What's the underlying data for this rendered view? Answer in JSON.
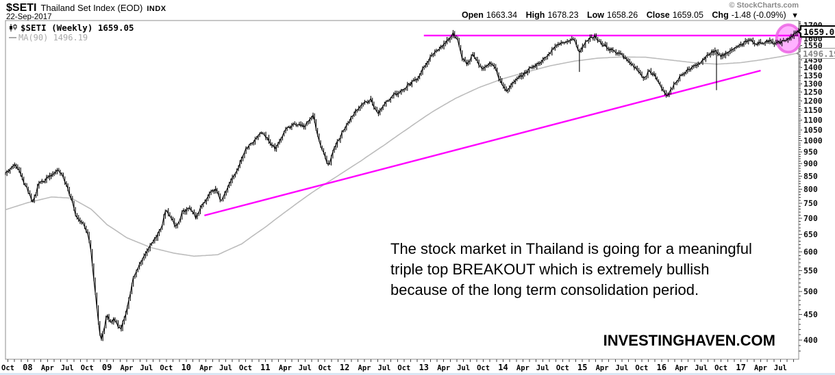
{
  "header": {
    "symbol": "$SETI",
    "name": "Thailand Set Index (EOD)",
    "exchange": "INDX",
    "date": "22-Sep-2017",
    "copyright": "© StockCharts.com",
    "quote": {
      "open_label": "Open",
      "open": "1663.34",
      "high_label": "High",
      "high": "1678.23",
      "low_label": "Low",
      "low": "1658.26",
      "close_label": "Close",
      "close": "1659.05",
      "chg_label": "Chg",
      "chg": "-1.48 (-0.09%)",
      "chg_arrow": "▼"
    }
  },
  "legend": {
    "series": "$SETI (Weekly) 1659.05",
    "ma": "MA(90) 1496.19"
  },
  "price_labels": {
    "last": "1659.05",
    "ma": "1496.19"
  },
  "annotation": {
    "lines": [
      "The stock market in Thailand is going for a meaningful",
      "triple top BREAKOUT which is extremely bullish",
      "because of the long term consolidation period."
    ]
  },
  "watermark": "INVESTINGHAVEN.COM",
  "colors": {
    "price": "#000000",
    "ma_line": "#bcbcbc",
    "trendline": "#ff00ff",
    "ellipse_fill": "rgba(255,0,255,0.30)",
    "ellipse_stroke": "rgba(236,100,228,0.85)",
    "axis": "#8c8c8c",
    "tick_text": "#111111"
  },
  "chart_data": {
    "type": "candlestick",
    "timeframe": "weekly",
    "x_range_years": [
      2007.72,
      2017.73
    ],
    "y_scale": "log",
    "y_range": [
      366,
      1738
    ],
    "y_ticks": [
      400,
      450,
      500,
      550,
      600,
      650,
      700,
      750,
      800,
      850,
      900,
      950,
      1000,
      1050,
      1100,
      1150,
      1200,
      1250,
      1300,
      1350,
      1400,
      1450,
      1500,
      1550,
      1600,
      1650,
      1700
    ],
    "x_tick_labels": [
      "Oct",
      "08",
      "Apr",
      "Jul",
      "Oct",
      "09",
      "Apr",
      "Jul",
      "Oct",
      "10",
      "Apr",
      "Jul",
      "Oct",
      "11",
      "Apr",
      "Jul",
      "Oct",
      "12",
      "Apr",
      "Jul",
      "Oct",
      "13",
      "Apr",
      "Jul",
      "Oct",
      "14",
      "Apr",
      "Jul",
      "Oct",
      "15",
      "Apr",
      "Jul",
      "Oct",
      "16",
      "Apr",
      "Jul",
      "Oct",
      "17",
      "Apr",
      "Jul"
    ],
    "x_tick_start_year": 2007.75,
    "x_tick_step_years": 0.25,
    "last_close": 1659.05,
    "last_high": 1678.23,
    "last_low": 1658.26,
    "ma_period": 90,
    "ma_last": 1496.19,
    "close_anchors": [
      [
        2007.72,
        858
      ],
      [
        2007.8,
        880
      ],
      [
        2007.86,
        897
      ],
      [
        2007.92,
        845
      ],
      [
        2008.0,
        800
      ],
      [
        2008.06,
        748
      ],
      [
        2008.14,
        820
      ],
      [
        2008.22,
        835
      ],
      [
        2008.3,
        855
      ],
      [
        2008.38,
        878
      ],
      [
        2008.46,
        840
      ],
      [
        2008.54,
        772
      ],
      [
        2008.62,
        700
      ],
      [
        2008.7,
        688
      ],
      [
        2008.76,
        650
      ],
      [
        2008.8,
        596
      ],
      [
        2008.84,
        520
      ],
      [
        2008.88,
        452
      ],
      [
        2008.92,
        398
      ],
      [
        2008.96,
        420
      ],
      [
        2009.0,
        450
      ],
      [
        2009.05,
        435
      ],
      [
        2009.1,
        440
      ],
      [
        2009.17,
        418
      ],
      [
        2009.25,
        460
      ],
      [
        2009.33,
        530
      ],
      [
        2009.42,
        570
      ],
      [
        2009.5,
        595
      ],
      [
        2009.58,
        630
      ],
      [
        2009.67,
        660
      ],
      [
        2009.75,
        728
      ],
      [
        2009.83,
        690
      ],
      [
        2009.88,
        672
      ],
      [
        2009.95,
        720
      ],
      [
        2010.05,
        735
      ],
      [
        2010.12,
        700
      ],
      [
        2010.2,
        740
      ],
      [
        2010.3,
        788
      ],
      [
        2010.38,
        800
      ],
      [
        2010.44,
        755
      ],
      [
        2010.55,
        820
      ],
      [
        2010.65,
        880
      ],
      [
        2010.75,
        960
      ],
      [
        2010.85,
        995
      ],
      [
        2010.95,
        1035
      ],
      [
        2011.05,
        1000
      ],
      [
        2011.12,
        965
      ],
      [
        2011.25,
        1050
      ],
      [
        2011.38,
        1080
      ],
      [
        2011.5,
        1070
      ],
      [
        2011.6,
        1125
      ],
      [
        2011.68,
        1000
      ],
      [
        2011.76,
        920
      ],
      [
        2011.8,
        890
      ],
      [
        2011.88,
        975
      ],
      [
        2011.96,
        1030
      ],
      [
        2012.05,
        1090
      ],
      [
        2012.15,
        1150
      ],
      [
        2012.25,
        1190
      ],
      [
        2012.33,
        1205
      ],
      [
        2012.42,
        1135
      ],
      [
        2012.5,
        1180
      ],
      [
        2012.6,
        1230
      ],
      [
        2012.7,
        1250
      ],
      [
        2012.8,
        1290
      ],
      [
        2012.9,
        1320
      ],
      [
        2013.0,
        1400
      ],
      [
        2013.1,
        1480
      ],
      [
        2013.2,
        1530
      ],
      [
        2013.3,
        1590
      ],
      [
        2013.37,
        1635
      ],
      [
        2013.42,
        1590
      ],
      [
        2013.48,
        1465
      ],
      [
        2013.54,
        1420
      ],
      [
        2013.62,
        1480
      ],
      [
        2013.68,
        1435
      ],
      [
        2013.74,
        1380
      ],
      [
        2013.82,
        1430
      ],
      [
        2013.9,
        1395
      ],
      [
        2013.97,
        1305
      ],
      [
        2014.04,
        1250
      ],
      [
        2014.12,
        1300
      ],
      [
        2014.22,
        1345
      ],
      [
        2014.32,
        1385
      ],
      [
        2014.42,
        1415
      ],
      [
        2014.52,
        1460
      ],
      [
        2014.62,
        1520
      ],
      [
        2014.72,
        1560
      ],
      [
        2014.82,
        1585
      ],
      [
        2014.9,
        1600
      ],
      [
        2014.96,
        1500
      ],
      [
        2015.02,
        1560
      ],
      [
        2015.1,
        1600
      ],
      [
        2015.16,
        1615
      ],
      [
        2015.24,
        1560
      ],
      [
        2015.32,
        1540
      ],
      [
        2015.4,
        1500
      ],
      [
        2015.5,
        1480
      ],
      [
        2015.58,
        1440
      ],
      [
        2015.66,
        1400
      ],
      [
        2015.72,
        1365
      ],
      [
        2015.78,
        1330
      ],
      [
        2015.84,
        1380
      ],
      [
        2015.9,
        1360
      ],
      [
        2015.96,
        1300
      ],
      [
        2016.02,
        1260
      ],
      [
        2016.08,
        1228
      ],
      [
        2016.16,
        1300
      ],
      [
        2016.24,
        1350
      ],
      [
        2016.32,
        1385
      ],
      [
        2016.4,
        1400
      ],
      [
        2016.48,
        1430
      ],
      [
        2016.56,
        1470
      ],
      [
        2016.62,
        1500
      ],
      [
        2016.68,
        1512
      ],
      [
        2016.74,
        1480
      ],
      [
        2016.82,
        1495
      ],
      [
        2016.9,
        1520
      ],
      [
        2016.97,
        1540
      ],
      [
        2017.05,
        1570
      ],
      [
        2017.12,
        1585
      ],
      [
        2017.2,
        1560
      ],
      [
        2017.28,
        1572
      ],
      [
        2017.36,
        1580
      ],
      [
        2017.44,
        1565
      ],
      [
        2017.52,
        1575
      ],
      [
        2017.58,
        1585
      ],
      [
        2017.64,
        1612
      ],
      [
        2017.68,
        1638
      ],
      [
        2017.72,
        1659.05
      ]
    ],
    "ma_anchors": [
      [
        2007.72,
        728
      ],
      [
        2008.0,
        752
      ],
      [
        2008.3,
        772
      ],
      [
        2008.55,
        768
      ],
      [
        2008.8,
        730
      ],
      [
        2009.0,
        680
      ],
      [
        2009.25,
        640
      ],
      [
        2009.55,
        612
      ],
      [
        2009.85,
        596
      ],
      [
        2010.1,
        588
      ],
      [
        2010.4,
        592
      ],
      [
        2010.7,
        622
      ],
      [
        2011.0,
        672
      ],
      [
        2011.3,
        730
      ],
      [
        2011.6,
        790
      ],
      [
        2011.9,
        848
      ],
      [
        2012.2,
        910
      ],
      [
        2012.5,
        980
      ],
      [
        2012.8,
        1058
      ],
      [
        2013.1,
        1140
      ],
      [
        2013.4,
        1215
      ],
      [
        2013.7,
        1278
      ],
      [
        2014.0,
        1330
      ],
      [
        2014.3,
        1372
      ],
      [
        2014.6,
        1412
      ],
      [
        2014.9,
        1442
      ],
      [
        2015.2,
        1462
      ],
      [
        2015.5,
        1470
      ],
      [
        2015.8,
        1468
      ],
      [
        2016.1,
        1450
      ],
      [
        2016.4,
        1432
      ],
      [
        2016.7,
        1422
      ],
      [
        2017.0,
        1432
      ],
      [
        2017.25,
        1450
      ],
      [
        2017.5,
        1472
      ],
      [
        2017.72,
        1496.19
      ]
    ],
    "special_wicks": [
      [
        2014.96,
        1372
      ],
      [
        2016.7,
        1262
      ]
    ],
    "trendlines": [
      {
        "name": "resistance",
        "x1": 2013.0,
        "p1": 1622,
        "x2": 2017.73,
        "p2": 1622
      },
      {
        "name": "support",
        "x1": 2010.23,
        "p1": 709,
        "x2": 2017.25,
        "p2": 1381
      }
    ],
    "highlight_ellipse": {
      "x_year": 2017.6,
      "price": 1600,
      "rx_years": 0.15,
      "ry_log": 0.063
    }
  }
}
